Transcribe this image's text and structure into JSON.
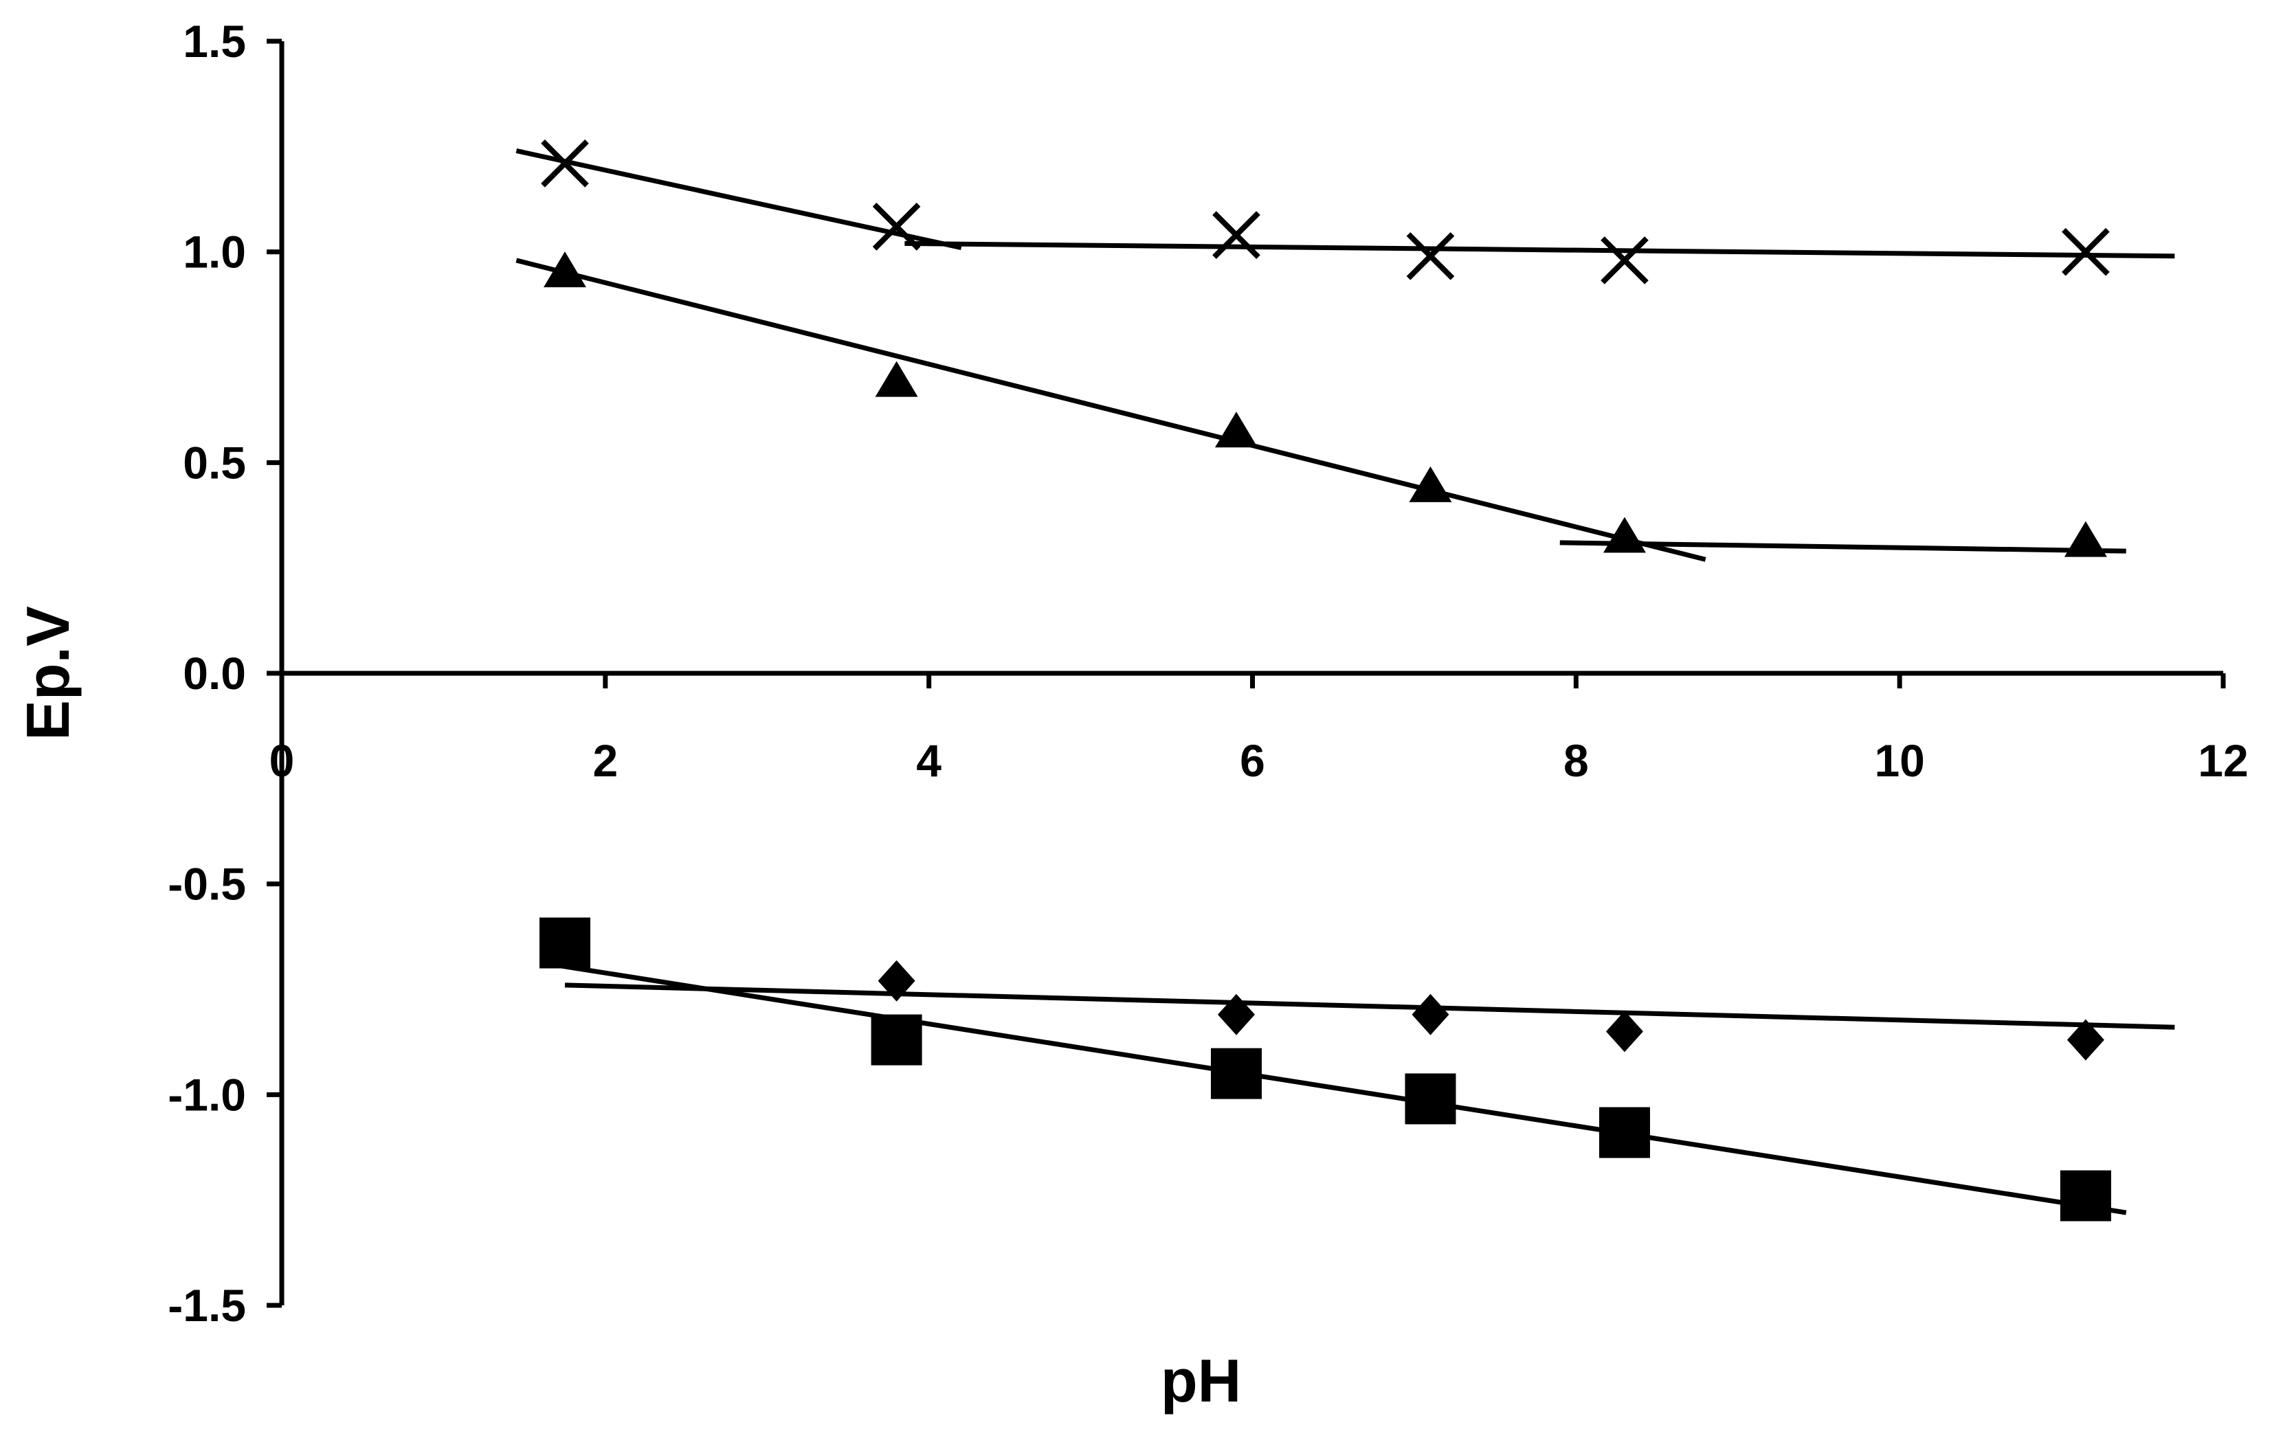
{
  "chart_data": {
    "type": "scatter",
    "title": "",
    "xlabel": "pH",
    "ylabel": "Ep.V",
    "xlim": [
      0,
      12
    ],
    "ylim": [
      -1.5,
      1.5
    ],
    "x_ticks": [
      0,
      2,
      4,
      6,
      8,
      10,
      12
    ],
    "y_ticks": [
      -1.5,
      -1.0,
      -0.5,
      0.0,
      0.5,
      1.0,
      1.5
    ],
    "x_tick_labels": [
      "0",
      "2",
      "4",
      "6",
      "8",
      "10",
      "12"
    ],
    "y_tick_labels": [
      "-1.5",
      "-1.0",
      "-0.5",
      "0.0",
      "0.5",
      "1.0",
      "1.5"
    ],
    "grid": false,
    "legend": "none",
    "series": [
      {
        "marker": "cross",
        "x": [
          1.75,
          3.8,
          5.9,
          7.1,
          8.3,
          11.15
        ],
        "y": [
          1.21,
          1.06,
          1.04,
          0.99,
          0.98,
          1.0
        ],
        "fit_lines": [
          {
            "x": [
              1.45,
              4.2
            ],
            "y": [
              1.24,
              1.01
            ]
          },
          {
            "x": [
              3.85,
              11.7
            ],
            "y": [
              1.02,
              0.99
            ]
          }
        ]
      },
      {
        "marker": "triangle",
        "x": [
          1.75,
          3.8,
          5.9,
          7.1,
          8.3,
          11.15
        ],
        "y": [
          0.95,
          0.69,
          0.57,
          0.44,
          0.32,
          0.31
        ],
        "fit_lines": [
          {
            "x": [
              1.45,
              8.8
            ],
            "y": [
              0.98,
              0.27
            ]
          },
          {
            "x": [
              7.9,
              11.4
            ],
            "y": [
              0.31,
              0.29
            ]
          }
        ]
      },
      {
        "marker": "diamond",
        "x": [
          3.8,
          5.9,
          7.1,
          8.3,
          11.15
        ],
        "y": [
          -0.73,
          -0.81,
          -0.81,
          -0.85,
          -0.87
        ],
        "fit_lines": [
          {
            "x": [
              1.75,
              11.7
            ],
            "y": [
              -0.74,
              -0.84
            ]
          }
        ]
      },
      {
        "marker": "square",
        "x": [
          1.75,
          3.8,
          5.9,
          7.1,
          8.3,
          11.15
        ],
        "y": [
          -0.64,
          -0.87,
          -0.95,
          -1.01,
          -1.09,
          -1.24
        ],
        "fit_lines": [
          {
            "x": [
              1.65,
              11.4
            ],
            "y": [
              -0.69,
              -1.28
            ]
          }
        ]
      }
    ]
  }
}
